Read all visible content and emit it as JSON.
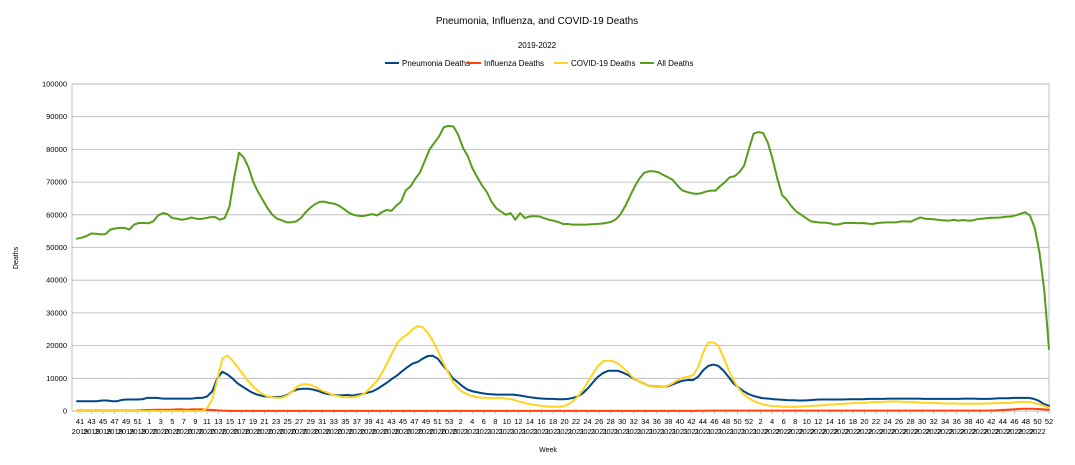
{
  "chart_data": {
    "type": "line",
    "title": "Pneumonia, Influenza, and COVID-19 Deaths",
    "subtitle": "2019-2022",
    "xlabel": "Week",
    "ylabel": "Deaths",
    "ylim": [
      0,
      100000
    ],
    "yticks": [
      "0",
      "10000",
      "20000",
      "30000",
      "40000",
      "50000",
      "60000",
      "70000",
      "80000",
      "90000",
      "100000"
    ],
    "grid": true,
    "legend_position": "top-center",
    "x_week_labels": [
      "41",
      "43",
      "45",
      "47",
      "49",
      "51",
      "1",
      "3",
      "5",
      "7",
      "9",
      "11",
      "13",
      "15",
      "17",
      "19",
      "21",
      "23",
      "25",
      "27",
      "29",
      "31",
      "33",
      "35",
      "37",
      "39",
      "41",
      "43",
      "45",
      "47",
      "49",
      "51",
      "53",
      "2",
      "4",
      "6",
      "8",
      "10",
      "12",
      "14",
      "16",
      "18",
      "20",
      "22",
      "24",
      "26",
      "28",
      "30",
      "32",
      "34",
      "36",
      "38",
      "40",
      "42",
      "44",
      "46",
      "48",
      "50",
      "52",
      "2",
      "4",
      "6",
      "8",
      "10",
      "12",
      "14",
      "16",
      "18",
      "20",
      "22",
      "24",
      "26",
      "28",
      "30",
      "32",
      "34",
      "36",
      "38",
      "40",
      "42",
      "44",
      "46",
      "48",
      "50",
      "52"
    ],
    "x_year_labels": [
      "2019",
      "2019",
      "2019",
      "2019",
      "2019",
      "2019",
      "2020",
      "2020",
      "2020",
      "2020",
      "2020",
      "2020",
      "2020",
      "2020",
      "2020",
      "2020",
      "2020",
      "2020",
      "2020",
      "2020",
      "2020",
      "2020",
      "2020",
      "2020",
      "2020",
      "2020",
      "2020",
      "2020",
      "2020",
      "2020",
      "2020",
      "2020",
      "2020",
      "2021",
      "2021",
      "2021",
      "2021",
      "2021",
      "2021",
      "2021",
      "2021",
      "2021",
      "2021",
      "2021",
      "2021",
      "2021",
      "2021",
      "2021",
      "2021",
      "2021",
      "2021",
      "2021",
      "2021",
      "2021",
      "2021",
      "2021",
      "2021",
      "2021",
      "2021",
      "2022",
      "2022",
      "2022",
      "2022",
      "2022",
      "2022",
      "2022",
      "2022",
      "2022",
      "2022",
      "2022",
      "2022",
      "2022",
      "2022",
      "2022",
      "2022",
      "2022",
      "2022",
      "2022",
      "2022",
      "2022",
      "2022",
      "2022",
      "2022",
      "2022"
    ],
    "series": [
      {
        "name": "Pneumonia Deaths",
        "color": "#004586",
        "values": [
          3000,
          3000,
          3000,
          3000,
          3000,
          3200,
          3200,
          3000,
          3000,
          3400,
          3500,
          3500,
          3500,
          3600,
          4000,
          4000,
          4000,
          3800,
          3800,
          3800,
          3800,
          3800,
          3800,
          3800,
          4000,
          4000,
          4500,
          6000,
          10000,
          12000,
          11200,
          10000,
          8500,
          7500,
          6500,
          5600,
          5000,
          4600,
          4400,
          4300,
          4300,
          4400,
          5000,
          6000,
          6600,
          6800,
          6800,
          6600,
          6200,
          5600,
          5200,
          5000,
          4800,
          4800,
          4900,
          4700,
          5000,
          5200,
          5600,
          6000,
          6800,
          7800,
          8800,
          10000,
          11000,
          12300,
          13500,
          14500,
          15000,
          16000,
          16800,
          16900,
          16000,
          14000,
          12200,
          10000,
          8800,
          7500,
          6500,
          6000,
          5700,
          5400,
          5200,
          5100,
          5000,
          5000,
          5000,
          5000,
          4800,
          4600,
          4300,
          4100,
          3900,
          3800,
          3700,
          3700,
          3600,
          3600,
          3700,
          4000,
          4500,
          5500,
          7000,
          8800,
          10500,
          11600,
          12300,
          12300,
          12300,
          11700,
          11000,
          10000,
          9200,
          8500,
          7800,
          7500,
          7400,
          7400,
          7600,
          8200,
          8800,
          9300,
          9500,
          9500,
          10500,
          12500,
          13800,
          14200,
          13800,
          12400,
          10500,
          8500,
          7200,
          6100,
          5200,
          4600,
          4200,
          3900,
          3800,
          3600,
          3500,
          3400,
          3300,
          3300,
          3200,
          3200,
          3300,
          3400,
          3500,
          3500,
          3500,
          3500,
          3500,
          3500,
          3600,
          3600,
          3600,
          3600,
          3700,
          3700,
          3700,
          3700,
          3800,
          3800,
          3800,
          3800,
          3800,
          3800,
          3800,
          3700,
          3700,
          3700,
          3700,
          3700,
          3700,
          3700,
          3700,
          3800,
          3800,
          3800,
          3700,
          3700,
          3700,
          3800,
          3900,
          3900,
          3900,
          4000,
          4000,
          4000,
          4000,
          3700,
          3100,
          2100,
          1600
        ]
      },
      {
        "name": "Influenza Deaths",
        "color": "#ff420e",
        "values": [
          100,
          100,
          100,
          100,
          100,
          100,
          100,
          100,
          100,
          100,
          100,
          100,
          200,
          300,
          300,
          400,
          400,
          400,
          400,
          500,
          500,
          400,
          500,
          500,
          500,
          400,
          300,
          200,
          100,
          50,
          30,
          20,
          20,
          20,
          20,
          20,
          20,
          20,
          20,
          20,
          20,
          20,
          20,
          20,
          20,
          20,
          20,
          20,
          20,
          20,
          20,
          20,
          20,
          20,
          20,
          20,
          20,
          20,
          20,
          20,
          20,
          20,
          20,
          20,
          20,
          20,
          20,
          20,
          20,
          20,
          20,
          20,
          20,
          20,
          20,
          20,
          20,
          20,
          20,
          20,
          20,
          20,
          20,
          20,
          20,
          20,
          20,
          20,
          20,
          20,
          20,
          20,
          20,
          20,
          20,
          20,
          20,
          20,
          20,
          20,
          20,
          20,
          20,
          20,
          20,
          20,
          20,
          20,
          20,
          20,
          20,
          20,
          20,
          20,
          20,
          20,
          20,
          30,
          40,
          60,
          80,
          100,
          100,
          100,
          100,
          100,
          100,
          100,
          100,
          100,
          100,
          100,
          100,
          100,
          100,
          100,
          100,
          100,
          100,
          100,
          100,
          100,
          100,
          100,
          100,
          100,
          100,
          100,
          100,
          100,
          100,
          100,
          100,
          100,
          100,
          100,
          100,
          100,
          100,
          100,
          100,
          100,
          100,
          100,
          100,
          100,
          100,
          100,
          100,
          100,
          100,
          100,
          100,
          100,
          100,
          150,
          200,
          300,
          400,
          500,
          600,
          700,
          700,
          700,
          600,
          500,
          400
        ]
      },
      {
        "name": "COVID-19 Deaths",
        "color": "#ffd320",
        "values": [
          0,
          0,
          0,
          0,
          0,
          0,
          0,
          0,
          0,
          0,
          0,
          0,
          0,
          0,
          0,
          0,
          0,
          0,
          0,
          0,
          0,
          0,
          0,
          0,
          0,
          0,
          1000,
          3500,
          9500,
          16000,
          17000,
          15500,
          13500,
          11500,
          9500,
          7700,
          6300,
          5200,
          4500,
          4200,
          4000,
          4100,
          4800,
          6000,
          7500,
          8200,
          8200,
          7800,
          7000,
          6200,
          5600,
          5000,
          4600,
          4300,
          4200,
          4200,
          4500,
          5000,
          6200,
          7800,
          9500,
          12000,
          15000,
          18000,
          21000,
          22500,
          23500,
          25000,
          26000,
          25600,
          24000,
          21500,
          18500,
          15000,
          12000,
          9000,
          7000,
          5800,
          5000,
          4500,
          4200,
          4000,
          4000,
          3900,
          4000,
          4000,
          3700,
          3500,
          3000,
          2600,
          2200,
          1900,
          1700,
          1500,
          1400,
          1300,
          1300,
          1400,
          2000,
          3000,
          4500,
          6500,
          9000,
          11500,
          13800,
          15200,
          15400,
          15200,
          14500,
          13200,
          11800,
          10200,
          9200,
          8500,
          7800,
          7400,
          7300,
          7400,
          7800,
          8600,
          9500,
          10200,
          10500,
          11000,
          13500,
          18000,
          21000,
          21000,
          20000,
          16500,
          12800,
          9500,
          7000,
          5200,
          4000,
          3100,
          2500,
          2000,
          1700,
          1500,
          1400,
          1300,
          1300,
          1300,
          1300,
          1400,
          1500,
          1600,
          1700,
          1800,
          1900,
          2000,
          2100,
          2200,
          2300,
          2400,
          2500,
          2500,
          2600,
          2700,
          2800,
          2800,
          2900,
          2900,
          2900,
          2800,
          2800,
          2700,
          2600,
          2500,
          2500,
          2400,
          2400,
          2300,
          2300,
          2300,
          2200,
          2200,
          2200,
          2200,
          2200,
          2300,
          2300,
          2400,
          2400,
          2500,
          2500,
          2600,
          2800,
          2800,
          2800,
          2500,
          2100,
          1600,
          1000
        ]
      },
      {
        "name": "All Deaths",
        "color": "#579d1c",
        "values": [
          52700,
          53000,
          53500,
          54300,
          54200,
          54000,
          54100,
          55500,
          55800,
          56000,
          56000,
          55500,
          57000,
          57500,
          57500,
          57400,
          58000,
          59800,
          60500,
          60200,
          59000,
          58800,
          58500,
          58700,
          59200,
          58800,
          58700,
          59000,
          59300,
          59300,
          58500,
          59000,
          62500,
          71500,
          79000,
          77500,
          74500,
          70000,
          67000,
          64500,
          62000,
          60000,
          58800,
          58300,
          57700,
          57700,
          58000,
          59000,
          60800,
          62200,
          63300,
          64000,
          64000,
          63600,
          63400,
          62800,
          61800,
          60700,
          60000,
          59700,
          59600,
          59900,
          60200,
          59800,
          60800,
          61500,
          61200,
          62800,
          64000,
          67500,
          68700,
          71000,
          73000,
          76500,
          80000,
          82000,
          84000,
          86800,
          87200,
          87000,
          84500,
          80500,
          78000,
          74200,
          71500,
          69000,
          67000,
          64000,
          62000,
          61000,
          60000,
          60500,
          58500,
          60500,
          59000,
          59500,
          59600,
          59500,
          59000,
          58500,
          58200,
          57800,
          57200,
          57200,
          57000,
          57000,
          57000,
          57000,
          57100,
          57200,
          57300,
          57500,
          57800,
          58500,
          60000,
          62500,
          65500,
          68500,
          71000,
          72800,
          73300,
          73300,
          73000,
          72200,
          71500,
          70700,
          69000,
          67500,
          67000,
          66600,
          66400,
          66600,
          67100,
          67400,
          67400,
          68800,
          70000,
          71500,
          71800,
          73000,
          75000,
          80000,
          84800,
          85300,
          85000,
          82000,
          77000,
          71000,
          66000,
          64500,
          62500,
          61000,
          60000,
          59000,
          58000,
          57800,
          57600,
          57600,
          57400,
          57000,
          57100,
          57500,
          57500,
          57500,
          57400,
          57500,
          57300,
          57200,
          57500,
          57600,
          57700,
          57700,
          57700,
          58000,
          58000,
          57900,
          58600,
          59200,
          58800,
          58700,
          58600,
          58400,
          58300,
          58200,
          58500,
          58200,
          58400,
          58200,
          58300,
          58700,
          58800,
          59000,
          59100,
          59100,
          59200,
          59400,
          59500,
          59800,
          60300,
          60800,
          59800,
          56000,
          48500,
          37000,
          19000
        ]
      }
    ]
  }
}
